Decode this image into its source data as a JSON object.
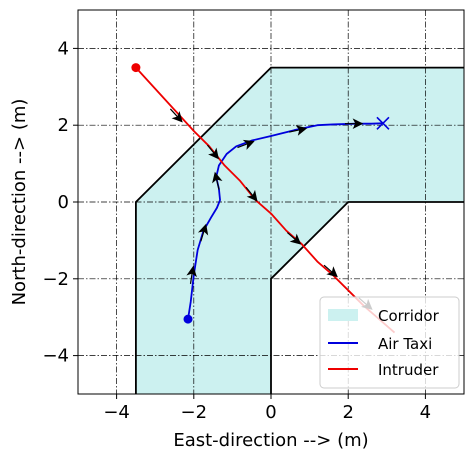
{
  "chart_data": {
    "type": "line",
    "title": "",
    "xlabel": "East-direction --> (m)",
    "ylabel": "North-direction --> (m)",
    "xlim": [
      -5,
      5
    ],
    "ylim": [
      -5,
      5
    ],
    "xticks": [
      -4,
      -2,
      0,
      2,
      4
    ],
    "yticks": [
      -4,
      -2,
      0,
      2,
      4
    ],
    "x_tick_labels": [
      "−4",
      "−2",
      "0",
      "2",
      "4"
    ],
    "y_tick_labels": [
      "−4",
      "−2",
      "0",
      "2",
      "4"
    ],
    "grid": true,
    "legend_position": "bottom-right",
    "corridor": {
      "name": "Corridor",
      "color": "#ccf1f0",
      "outer_boundary": [
        [
          -3.5,
          -5
        ],
        [
          -3.5,
          0
        ],
        [
          0,
          3.5
        ],
        [
          5,
          3.5
        ]
      ],
      "inner_boundary": [
        [
          0,
          -5
        ],
        [
          0,
          -2
        ],
        [
          2,
          0
        ],
        [
          5,
          0
        ]
      ]
    },
    "series": [
      {
        "name": "Air Taxi",
        "color": "#0000dd",
        "start_marker": "circle",
        "end_marker": "x",
        "x": [
          -2.15,
          -2.08,
          -2.0,
          -1.9,
          -1.75,
          -1.55,
          -1.4,
          -1.32,
          -1.35,
          -1.42,
          -1.35,
          -1.15,
          -0.9,
          -0.5,
          0.0,
          0.6,
          1.2,
          1.6,
          2.2,
          2.6,
          2.9
        ],
        "y": [
          -3.05,
          -2.6,
          -1.9,
          -1.25,
          -0.75,
          -0.4,
          -0.15,
          0.05,
          0.35,
          0.65,
          0.95,
          1.25,
          1.45,
          1.6,
          1.72,
          1.87,
          2.0,
          2.02,
          2.04,
          2.04,
          2.05
        ],
        "arrows_at": [
          [
            -2.05,
            -1.9
          ],
          [
            -1.75,
            -0.8
          ],
          [
            -1.4,
            0.55
          ],
          [
            -0.65,
            1.5
          ],
          [
            0.7,
            1.87
          ],
          [
            2.15,
            2.04
          ]
        ]
      },
      {
        "name": "Intruder",
        "color": "#ee0000",
        "start_marker": "circle",
        "end_marker": "none",
        "x": [
          -3.5,
          -3.0,
          -2.5,
          -2.0,
          -1.6,
          -1.2,
          -0.8,
          -0.4,
          0.0,
          0.4,
          0.8,
          1.2,
          1.6,
          2.0,
          2.4,
          2.8,
          3.2
        ],
        "y": [
          3.5,
          2.95,
          2.4,
          1.85,
          1.45,
          0.95,
          0.55,
          0.05,
          -0.3,
          -0.75,
          -1.1,
          -1.55,
          -1.9,
          -2.3,
          -2.7,
          -3.05,
          -3.4
        ],
        "arrows_at": [
          [
            -2.45,
            2.25
          ],
          [
            -1.5,
            1.3
          ],
          [
            -0.5,
            0.2
          ],
          [
            0.6,
            -0.95
          ],
          [
            1.55,
            -1.8
          ],
          [
            2.45,
            -2.65
          ]
        ]
      }
    ]
  }
}
